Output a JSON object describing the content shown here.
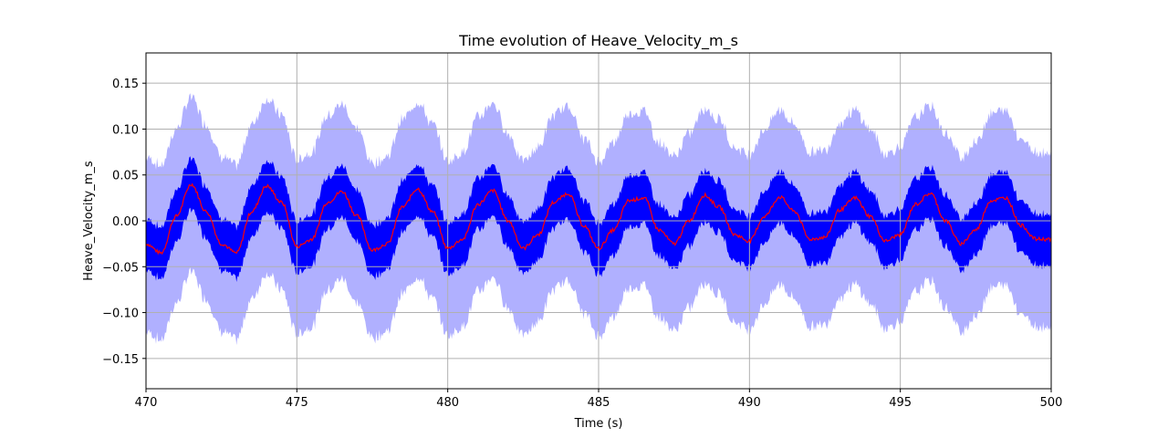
{
  "chart_data": {
    "type": "area",
    "title": "Time evolution of Heave_Velocity_m_s",
    "xlabel": "Time (s)",
    "ylabel": "Heave_Velocity_m_s",
    "xlim": [
      470,
      500
    ],
    "ylim": [
      -0.183,
      0.183
    ],
    "x_ticks": [
      470,
      475,
      480,
      485,
      490,
      495,
      500
    ],
    "y_ticks": [
      -0.15,
      -0.1,
      -0.05,
      0.0,
      0.05,
      0.1,
      0.15
    ],
    "x_tick_labels": [
      "470",
      "475",
      "480",
      "485",
      "490",
      "495",
      "500"
    ],
    "y_tick_labels": [
      "−0.15",
      "−0.10",
      "−0.05",
      "0.00",
      "0.05",
      "0.10",
      "0.15"
    ],
    "grid": true,
    "period_s": 2.25,
    "x": [
      470,
      470.5,
      471,
      471.5,
      472,
      472.5,
      473,
      473.5,
      474,
      474.5,
      475,
      475.5,
      476,
      476.5,
      477,
      477.5,
      478,
      478.5,
      479,
      479.5,
      480,
      480.5,
      481,
      481.5,
      482,
      482.5,
      483,
      483.5,
      484,
      484.5,
      485,
      485.5,
      486,
      486.5,
      487,
      487.5,
      488,
      488.5,
      489,
      489.5,
      490,
      490.5,
      491,
      491.5,
      492,
      492.5,
      493,
      493.5,
      494,
      494.5,
      495,
      495.5,
      496,
      496.5,
      497,
      497.5,
      498,
      498.5,
      499,
      499.5,
      500
    ],
    "series": [
      {
        "role": "mean",
        "values": [
          -0.025,
          -0.035,
          0.005,
          0.04,
          0.01,
          -0.025,
          -0.035,
          0.01,
          0.038,
          0.02,
          -0.028,
          -0.02,
          0.02,
          0.032,
          0.005,
          -0.032,
          -0.025,
          0.015,
          0.035,
          0.01,
          -0.03,
          -0.02,
          0.018,
          0.033,
          0.0,
          -0.03,
          -0.015,
          0.02,
          0.03,
          -0.005,
          -0.03,
          -0.01,
          0.022,
          0.025,
          -0.01,
          -0.025,
          0.0,
          0.028,
          0.015,
          -0.015,
          -0.022,
          0.005,
          0.026,
          0.01,
          -0.02,
          -0.018,
          0.012,
          0.025,
          0.005,
          -0.022,
          -0.015,
          0.018,
          0.03,
          0.0,
          -0.025,
          -0.01,
          0.022,
          0.025,
          -0.005,
          -0.02,
          -0.02
        ]
      }
    ],
    "bands": [
      {
        "role": "inner",
        "half_width": 0.028,
        "color": "#0000ff"
      },
      {
        "role": "outer",
        "half_width": 0.095,
        "color": "#b0b0ff"
      }
    ],
    "colors": {
      "mean_line": "#ff0000",
      "inner_band": "#0000ff",
      "outer_band": "#b0b0ff",
      "grid": "#b0b0b0"
    }
  }
}
